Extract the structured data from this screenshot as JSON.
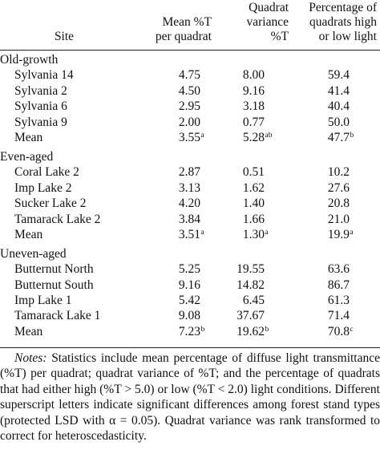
{
  "table": {
    "header": [
      [
        "Site"
      ],
      [
        "Mean %T",
        "per quadrat"
      ],
      [
        "Quadrat",
        "variance",
        "%T"
      ],
      [
        "Percentage of",
        "quadrats high",
        "or low light"
      ]
    ],
    "groups": [
      {
        "name": "Old-growth",
        "rows": [
          [
            "Sylvania 14",
            "4.75",
            "8.00",
            "59.4"
          ],
          [
            "Sylvania 2",
            "4.50",
            "9.16",
            "41.4"
          ],
          [
            "Sylvania 6",
            "2.95",
            "3.18",
            "40.4"
          ],
          [
            "Sylvania 9",
            "2.00",
            "0.77",
            "50.0"
          ],
          [
            "Mean",
            {
              "text": "3.55",
              "sup": "a"
            },
            {
              "text": "5.28",
              "sup": "ab"
            },
            {
              "text": "47.7",
              "sup": "b"
            }
          ]
        ]
      },
      {
        "name": "Even-aged",
        "rows": [
          [
            "Coral Lake 2",
            "2.87",
            "0.51",
            "10.2"
          ],
          [
            "Imp Lake 2",
            "3.13",
            "1.62",
            "27.6"
          ],
          [
            "Sucker Lake 2",
            "4.20",
            "1.40",
            "20.8"
          ],
          [
            "Tamarack Lake 2",
            "3.84",
            "1.66",
            "21.0"
          ],
          [
            "Mean",
            {
              "text": "3.51",
              "sup": "a"
            },
            {
              "text": "1.30",
              "sup": "a"
            },
            {
              "text": "19.9",
              "sup": "a"
            }
          ]
        ]
      },
      {
        "name": "Uneven-aged",
        "rows": [
          [
            "Butternut North",
            "5.25",
            "19.55",
            "63.6"
          ],
          [
            "Butternut South",
            "9.16",
            "14.82",
            "86.7"
          ],
          [
            "Imp Lake 1",
            "5.42",
            "6.45",
            "61.3"
          ],
          [
            "Tamarack Lake 1",
            "9.08",
            "37.67",
            "71.4"
          ],
          [
            "Mean",
            {
              "text": "7.23",
              "sup": "b"
            },
            {
              "text": "19.62",
              "sup": "b"
            },
            {
              "text": "70.8",
              "sup": "c"
            }
          ]
        ]
      }
    ]
  },
  "notes": {
    "label": "Notes:",
    "text": "Statistics include mean percentage of diffuse light transmittance (%T) per quadrat; quadrat variance of %T; and the percentage of quadrats that had either high (%T > 5.0) or low (%T < 2.0) light conditions. Different superscript letters indicate significant differences among forest stand types (protected LSD with α = 0.05). Quadrat variance was rank transformed to correct for heteroscedasticity."
  }
}
